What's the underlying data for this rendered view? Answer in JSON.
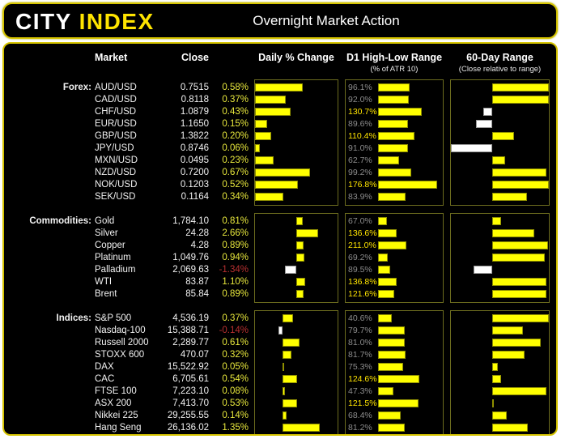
{
  "header": {
    "logo_city": "CITY ",
    "logo_index": "INDEX",
    "title": "Overnight Market Action"
  },
  "columns": {
    "market": "Market",
    "close": "Close",
    "daily": "Daily % Change",
    "d1": "D1 High-Low Range",
    "d1_sub": "(% of ATR 10)",
    "r60": "60-Day Range",
    "r60_sub": "(Close relative to range)"
  },
  "colors": {
    "accent_yellow": "#ffe400",
    "bar_yellow": "#ffff00",
    "bar_white": "#ffffff",
    "pct_yellow": "#e8e83c",
    "pct_red": "#b93030",
    "d1_gray": "#8c8c8c",
    "panel_border": "#6b6b1e",
    "card_border": "#d6c400"
  },
  "chart_data": {
    "type": "bar",
    "title": "Overnight Market Action",
    "legend": "yellow bars = positive / upper range, white bars = negative / lower range",
    "sections": [
      {
        "label": "Forex:",
        "daily_axis": [
          0,
          1.0
        ],
        "d1_axis": [
          0,
          195
        ],
        "r60_center": 0.423,
        "rows": [
          {
            "market": "AUD/USD",
            "close": "0.7515",
            "daily": 0.58,
            "daily_label": "0.58%",
            "d1": 96.1,
            "d1_label": "96.1%",
            "r60": 1.0
          },
          {
            "market": "CAD/USD",
            "close": "0.8118",
            "daily": 0.37,
            "daily_label": "0.37%",
            "d1": 92.0,
            "d1_label": "92.0%",
            "r60": 1.0
          },
          {
            "market": "CHF/USD",
            "close": "1.0879",
            "daily": 0.43,
            "daily_label": "0.43%",
            "d1": 130.7,
            "d1_label": "130.7%",
            "r60": -0.22
          },
          {
            "market": "EUR/USD",
            "close": "1.1650",
            "daily": 0.15,
            "daily_label": "0.15%",
            "d1": 89.6,
            "d1_label": "89.6%",
            "r60": -0.4
          },
          {
            "market": "GBP/USD",
            "close": "1.3822",
            "daily": 0.2,
            "daily_label": "0.20%",
            "d1": 110.4,
            "d1_label": "110.4%",
            "r60": 0.39
          },
          {
            "market": "JPY/USD",
            "close": "0.8746",
            "daily": 0.06,
            "daily_label": "0.06%",
            "d1": 91.0,
            "d1_label": "91.0%",
            "r60": -1.0
          },
          {
            "market": "MXN/USD",
            "close": "0.0495",
            "daily": 0.23,
            "daily_label": "0.23%",
            "d1": 62.7,
            "d1_label": "62.7%",
            "r60": 0.23
          },
          {
            "market": "NZD/USD",
            "close": "0.7200",
            "daily": 0.67,
            "daily_label": "0.67%",
            "d1": 99.2,
            "d1_label": "99.2%",
            "r60": 0.96
          },
          {
            "market": "NOK/USD",
            "close": "0.1203",
            "daily": 0.52,
            "daily_label": "0.52%",
            "d1": 176.8,
            "d1_label": "176.8%",
            "r60": 1.0
          },
          {
            "market": "SEK/USD",
            "close": "0.1164",
            "daily": 0.34,
            "daily_label": "0.34%",
            "d1": 83.9,
            "d1_label": "83.9%",
            "r60": 0.62
          }
        ]
      },
      {
        "label": "Commodities:",
        "daily_axis": [
          -5,
          5
        ],
        "d1_axis": [
          0,
          480
        ],
        "r60_center": 0.423,
        "rows": [
          {
            "market": "Gold",
            "close": "1,784.10",
            "daily": 0.81,
            "daily_label": "0.81%",
            "d1": 67.0,
            "d1_label": "67.0%",
            "r60": 0.15
          },
          {
            "market": "Silver",
            "close": "24.28",
            "daily": 2.66,
            "daily_label": "2.66%",
            "d1": 136.6,
            "d1_label": "136.6%",
            "r60": 0.74
          },
          {
            "market": "Copper",
            "close": "4.28",
            "daily": 0.89,
            "daily_label": "0.89%",
            "d1": 211.0,
            "d1_label": "211.0%",
            "r60": 0.99
          },
          {
            "market": "Platinum",
            "close": "1,049.76",
            "daily": 0.94,
            "daily_label": "0.94%",
            "d1": 69.2,
            "d1_label": "69.2%",
            "r60": 0.93
          },
          {
            "market": "Palladium",
            "close": "2,069.63",
            "daily": -1.34,
            "daily_label": "-1.34%",
            "d1": 89.5,
            "d1_label": "89.5%",
            "r60": -0.45
          },
          {
            "market": "WTI",
            "close": "83.87",
            "daily": 1.1,
            "daily_label": "1.10%",
            "d1": 136.8,
            "d1_label": "136.8%",
            "r60": 0.96
          },
          {
            "market": "Brent",
            "close": "85.84",
            "daily": 0.89,
            "daily_label": "0.89%",
            "d1": 121.6,
            "d1_label": "121.6%",
            "r60": 0.96
          }
        ]
      },
      {
        "label": "Indices:",
        "daily_axis": [
          -1,
          2
        ],
        "d1_axis": [
          0,
          195
        ],
        "r60_center": 0.423,
        "rows": [
          {
            "market": "S&P 500",
            "close": "4,536.19",
            "daily": 0.37,
            "daily_label": "0.37%",
            "d1": 40.6,
            "d1_label": "40.6%",
            "r60": 1.0
          },
          {
            "market": "Nasdaq-100",
            "close": "15,388.71",
            "daily": -0.14,
            "daily_label": "-0.14%",
            "d1": 79.7,
            "d1_label": "79.7%",
            "r60": 0.54
          },
          {
            "market": "Russell 2000",
            "close": "2,289.77",
            "daily": 0.61,
            "daily_label": "0.61%",
            "d1": 81.0,
            "d1_label": "81.0%",
            "r60": 0.85
          },
          {
            "market": "STOXX 600",
            "close": "470.07",
            "daily": 0.32,
            "daily_label": "0.32%",
            "d1": 81.7,
            "d1_label": "81.7%",
            "r60": 0.57
          },
          {
            "market": "DAX",
            "close": "15,522.92",
            "daily": 0.05,
            "daily_label": "0.05%",
            "d1": 75.3,
            "d1_label": "75.3%",
            "r60": 0.1
          },
          {
            "market": "CAC",
            "close": "6,705.61",
            "daily": 0.54,
            "daily_label": "0.54%",
            "d1": 124.6,
            "d1_label": "124.6%",
            "r60": 0.16
          },
          {
            "market": "FTSE 100",
            "close": "7,223.10",
            "daily": 0.08,
            "daily_label": "0.08%",
            "d1": 47.3,
            "d1_label": "47.3%",
            "r60": 0.96
          },
          {
            "market": "ASX 200",
            "close": "7,413.70",
            "daily": 0.53,
            "daily_label": "0.53%",
            "d1": 121.5,
            "d1_label": "121.5%",
            "r60": 0.03
          },
          {
            "market": "Nikkei 225",
            "close": "29,255.55",
            "daily": 0.14,
            "daily_label": "0.14%",
            "d1": 68.4,
            "d1_label": "68.4%",
            "r60": 0.25
          },
          {
            "market": "Hang Seng",
            "close": "26,136.02",
            "daily": 1.35,
            "daily_label": "1.35%",
            "d1": 81.2,
            "d1_label": "81.2%",
            "r60": 0.63
          }
        ]
      }
    ]
  }
}
